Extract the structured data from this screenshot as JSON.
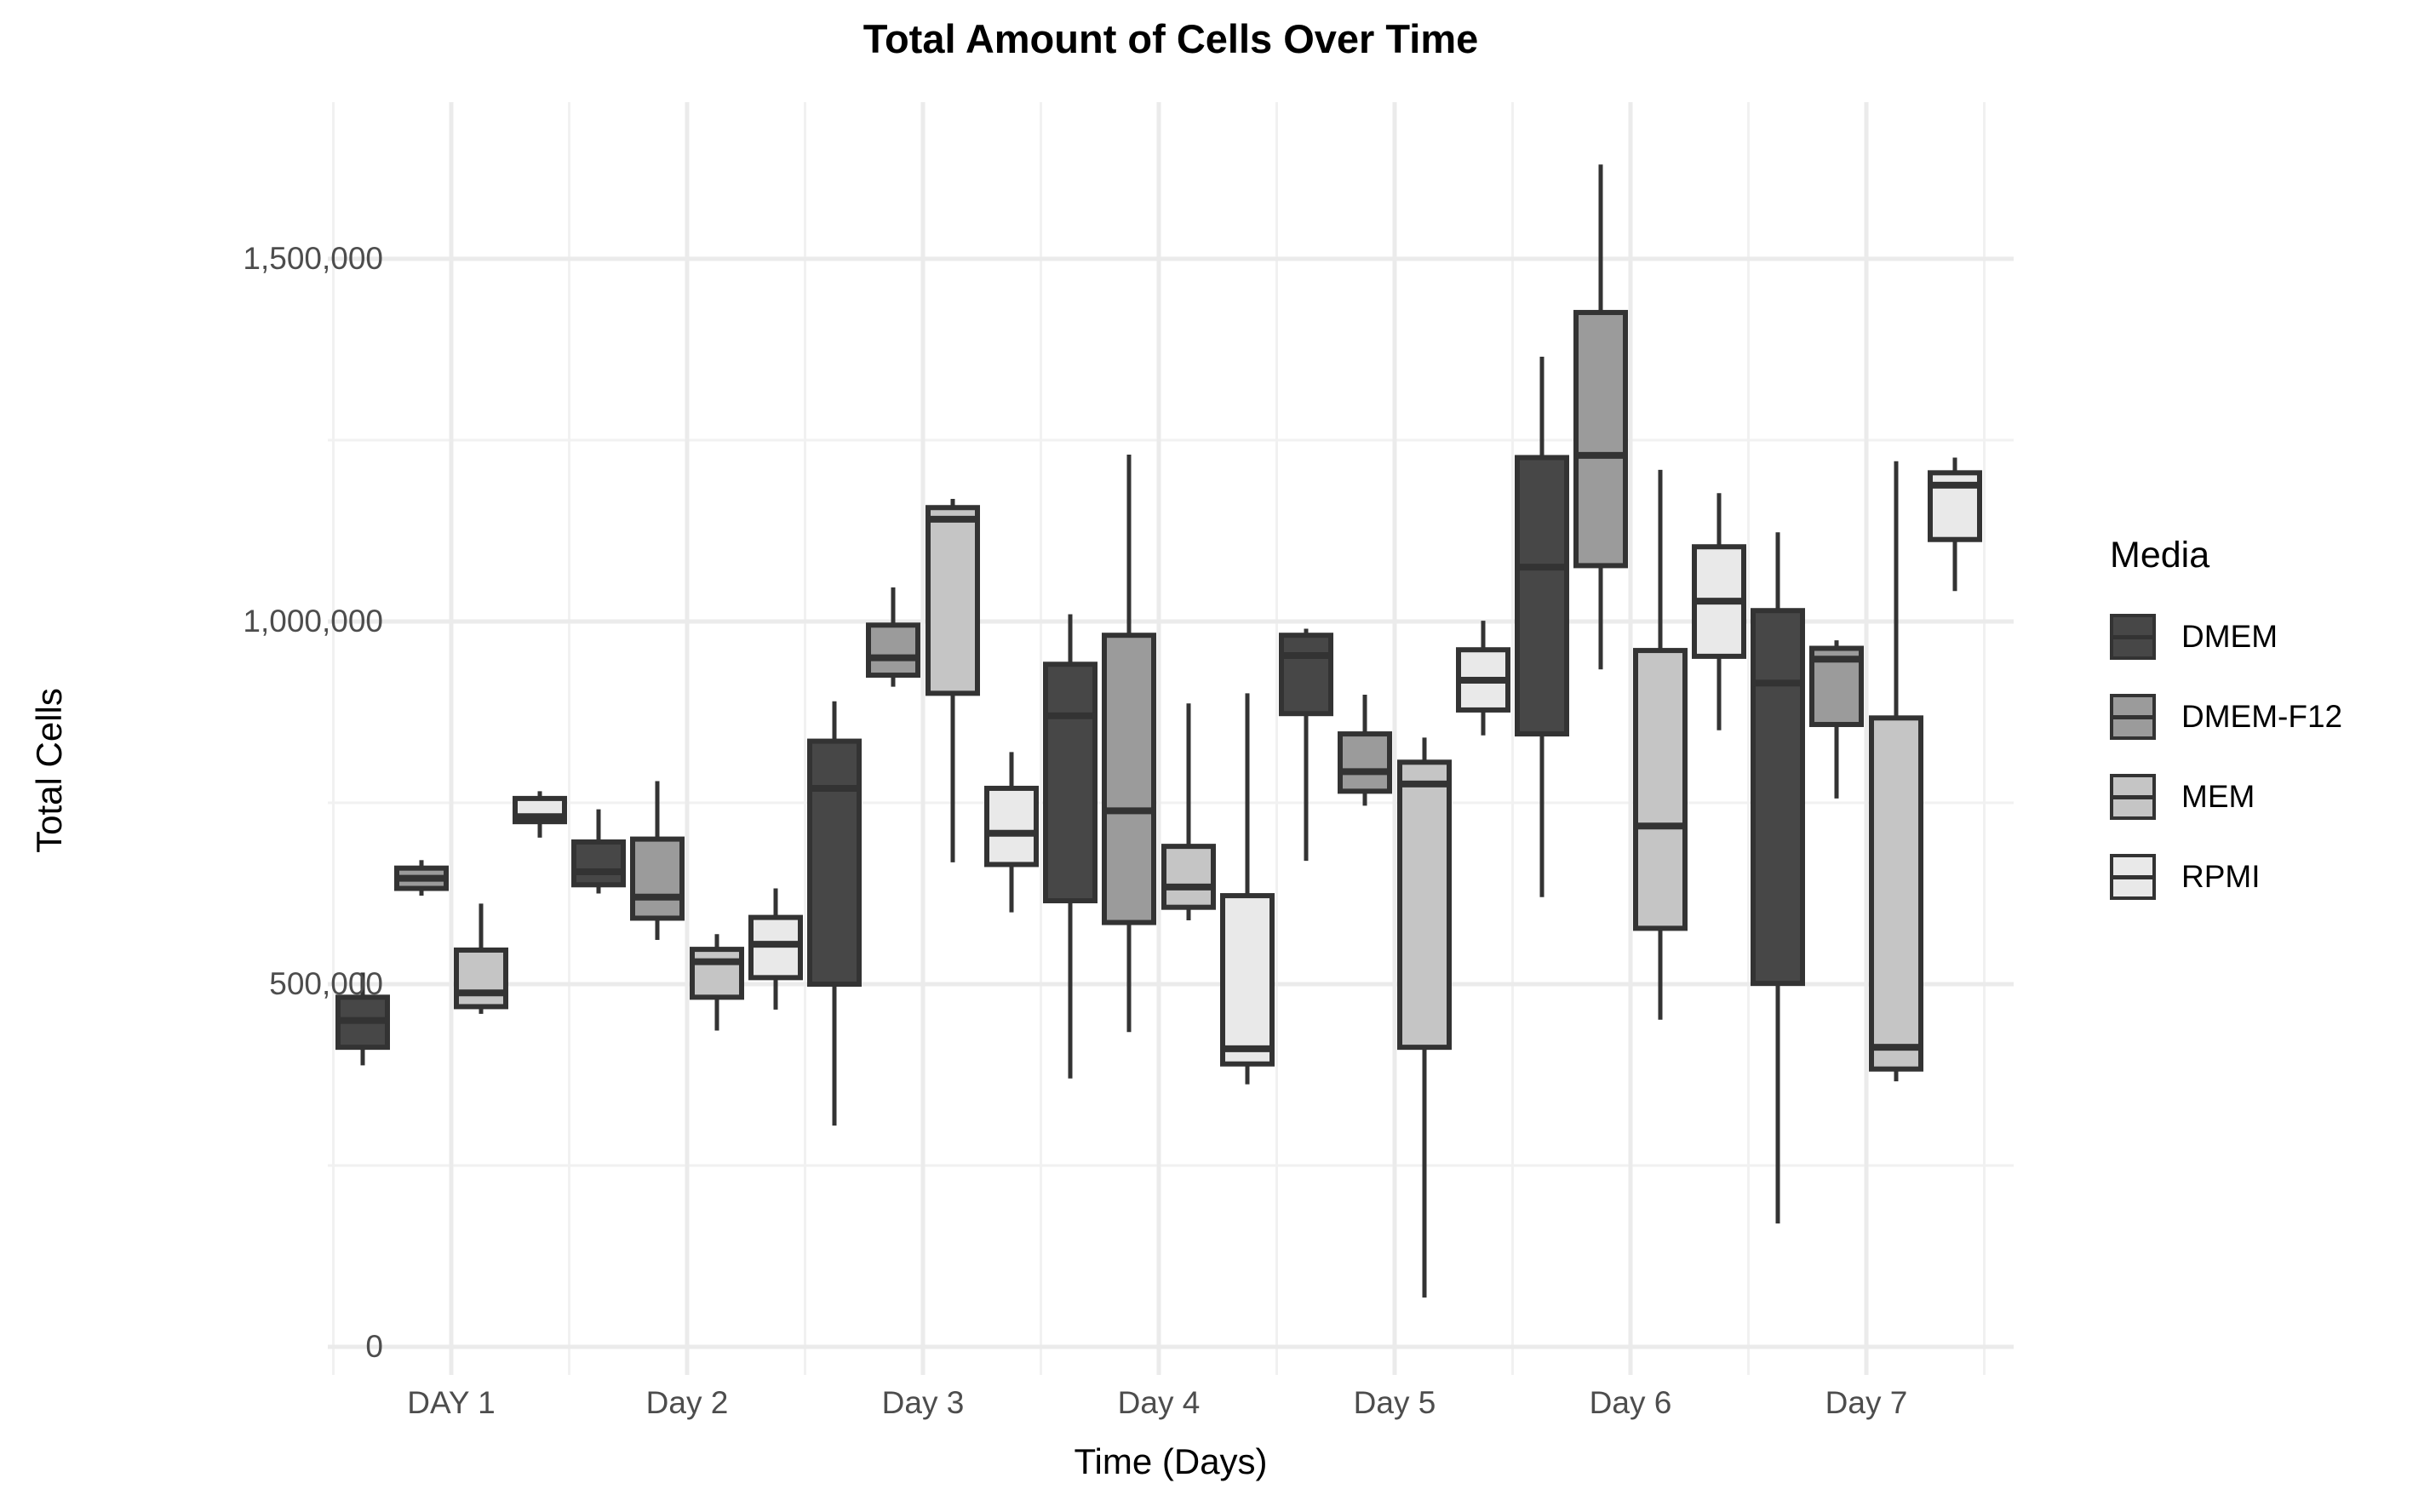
{
  "chart_data": {
    "type": "box",
    "title": "Total Amount of Cells Over Time",
    "xlabel": "Time (Days)",
    "ylabel": "Total Cells",
    "legend_title": "Media",
    "legend_position": "right",
    "grid": "on",
    "categories": [
      "DAY 1",
      "Day 2",
      "Day 3",
      "Day 4",
      "Day 5",
      "Day 6",
      "Day 7"
    ],
    "ylim": [
      0,
      1715000
    ],
    "yticks": {
      "values": [
        0,
        500000,
        1000000,
        1500000
      ],
      "labels": [
        "0",
        "500,000",
        "1,000,000",
        "1,500,000"
      ]
    },
    "yticks_minor": [
      250000,
      750000,
      1250000
    ],
    "colors": {
      "box_border": "#333333",
      "gridline_major": "#ebebeb",
      "gridline_minor": "#f1f1f1",
      "tick_text": "#4d4d4d",
      "background": "#ffffff"
    },
    "series": [
      {
        "name": "DMEM",
        "fill": "#474747",
        "boxes": [
          {
            "low": 388000,
            "q1": 413000,
            "med": 450000,
            "q3": 482000,
            "high": 516000
          },
          {
            "low": 625000,
            "q1": 637000,
            "med": 655000,
            "q3": 696000,
            "high": 741000
          },
          {
            "low": 305000,
            "q1": 500000,
            "med": 770000,
            "q3": 835000,
            "high": 890000
          },
          {
            "low": 370000,
            "q1": 615000,
            "med": 870000,
            "q3": 941000,
            "high": 1010000
          },
          {
            "low": 670000,
            "q1": 873000,
            "med": 953000,
            "q3": 981000,
            "high": 990000
          },
          {
            "low": 620000,
            "q1": 845000,
            "med": 1075000,
            "q3": 1226000,
            "high": 1365000
          },
          {
            "low": 170000,
            "q1": 501000,
            "med": 915000,
            "q3": 1015000,
            "high": 1123000
          }
        ]
      },
      {
        "name": "DMEM-F12",
        "fill": "#9b9b9b",
        "boxes": [
          {
            "low": 622000,
            "q1": 632000,
            "med": 646000,
            "q3": 660000,
            "high": 671000
          },
          {
            "low": 561000,
            "q1": 591000,
            "med": 620000,
            "q3": 700000,
            "high": 780000
          },
          {
            "low": 910000,
            "q1": 926000,
            "med": 950000,
            "q3": 995000,
            "high": 1047000
          },
          {
            "low": 434000,
            "q1": 585000,
            "med": 739000,
            "q3": 981000,
            "high": 1230000
          },
          {
            "low": 746000,
            "q1": 766000,
            "med": 793000,
            "q3": 845000,
            "high": 899000
          },
          {
            "low": 934000,
            "q1": 1077000,
            "med": 1229000,
            "q3": 1426000,
            "high": 1630000
          },
          {
            "low": 756000,
            "q1": 858000,
            "med": 948000,
            "q3": 963000,
            "high": 974000
          }
        ]
      },
      {
        "name": "MEM",
        "fill": "#c5c5c5",
        "boxes": [
          {
            "low": 459000,
            "q1": 469000,
            "med": 488000,
            "q3": 547000,
            "high": 611000
          },
          {
            "low": 436000,
            "q1": 482000,
            "med": 531000,
            "q3": 548000,
            "high": 569000
          },
          {
            "low": 668000,
            "q1": 901000,
            "med": 1141000,
            "q3": 1157000,
            "high": 1169000
          },
          {
            "low": 588000,
            "q1": 606000,
            "med": 634000,
            "q3": 690000,
            "high": 887000
          },
          {
            "low": 68000,
            "q1": 413000,
            "med": 776000,
            "q3": 806000,
            "high": 840000
          },
          {
            "low": 451000,
            "q1": 577000,
            "med": 718000,
            "q3": 960000,
            "high": 1209000
          },
          {
            "low": 366000,
            "q1": 383000,
            "med": 413000,
            "q3": 867000,
            "high": 1221000
          }
        ]
      },
      {
        "name": "RPMI",
        "fill": "#e9e9e9",
        "boxes": [
          {
            "low": 702000,
            "q1": 724000,
            "med": 731000,
            "q3": 756000,
            "high": 766000
          },
          {
            "low": 465000,
            "q1": 509000,
            "med": 555000,
            "q3": 592000,
            "high": 632000
          },
          {
            "low": 599000,
            "q1": 665000,
            "med": 708000,
            "q3": 770000,
            "high": 820000
          },
          {
            "low": 362000,
            "q1": 390000,
            "med": 411000,
            "q3": 622000,
            "high": 901000
          },
          {
            "low": 843000,
            "q1": 878000,
            "med": 919000,
            "q3": 961000,
            "high": 1001000
          },
          {
            "low": 850000,
            "q1": 952000,
            "med": 1028000,
            "q3": 1103000,
            "high": 1177000
          },
          {
            "low": 1042000,
            "q1": 1113000,
            "med": 1188000,
            "q3": 1205000,
            "high": 1226000
          }
        ]
      }
    ]
  }
}
